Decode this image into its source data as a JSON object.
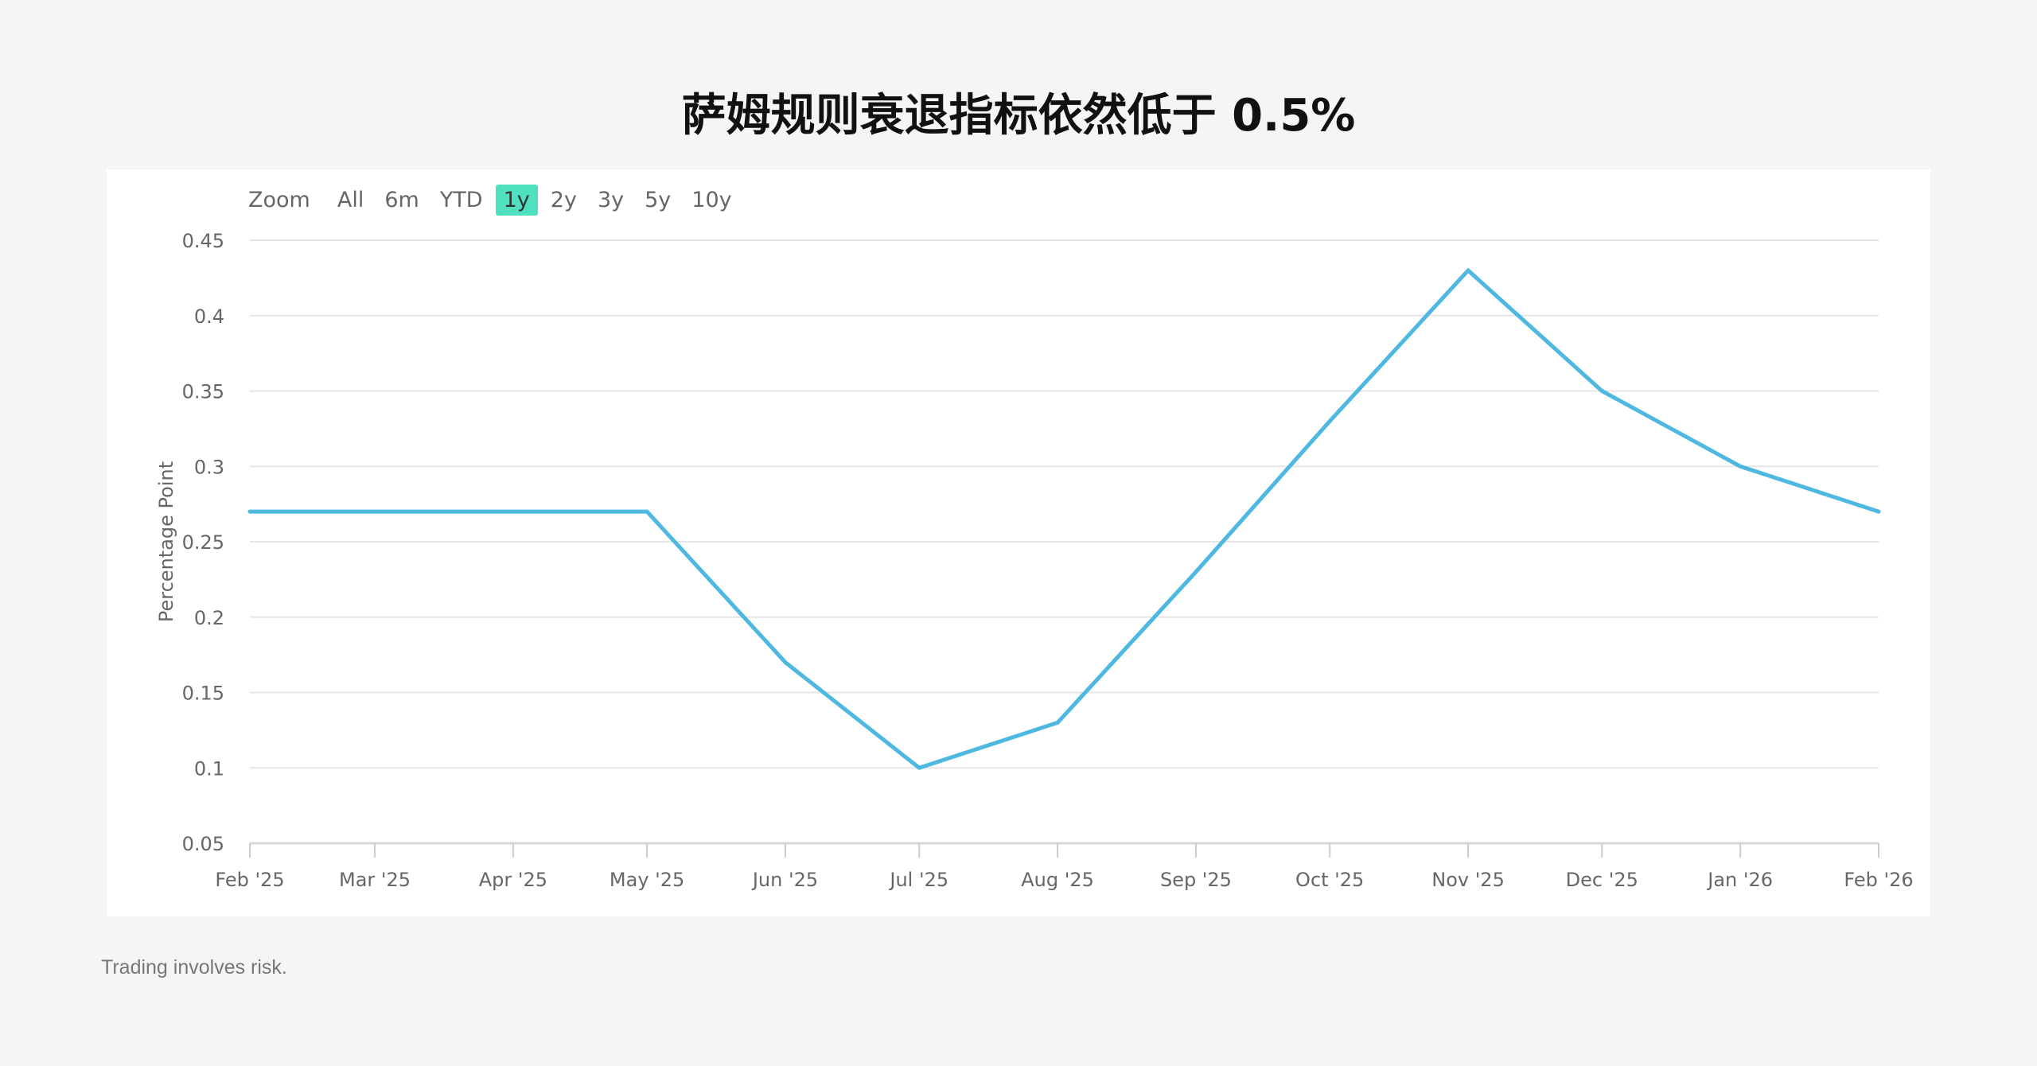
{
  "title": "萨姆规则衰退指标依然低于 0.5%",
  "zoom": {
    "label": "Zoom",
    "buttons": [
      "All",
      "6m",
      "YTD",
      "1y",
      "2y",
      "3y",
      "5y",
      "10y"
    ],
    "active": "1y"
  },
  "footer": "Trading involves risk.",
  "colors": {
    "line": "#4fb8e0",
    "active_button": "#4fe0c0",
    "grid": "#e6e6e6"
  },
  "chart_data": {
    "type": "line",
    "title": "",
    "xlabel": "",
    "ylabel": "Percentage Point",
    "ylim": [
      0.05,
      0.45
    ],
    "yticks": [
      "0.05",
      "0.1",
      "0.15",
      "0.2",
      "0.25",
      "0.3",
      "0.35",
      "0.4",
      "0.45"
    ],
    "grid": true,
    "x": [
      "2025-02-01",
      "2025-03-01",
      "2025-04-01",
      "2025-05-01",
      "2025-06-01",
      "2025-07-01",
      "2025-08-01",
      "2025-09-01",
      "2025-10-01",
      "2025-11-01",
      "2025-12-01",
      "2026-01-01",
      "2026-02-01"
    ],
    "xtick_labels": [
      "Feb '25",
      "Mar '25",
      "Apr '25",
      "May '25",
      "Jun '25",
      "Jul '25",
      "Aug '25",
      "Sep '25",
      "Oct '25",
      "Nov '25",
      "Dec '25",
      "Jan '26",
      "Feb '26"
    ],
    "series": [
      {
        "values": [
          0.27,
          0.27,
          0.27,
          0.27,
          0.17,
          0.1,
          0.13,
          0.23,
          0.33,
          0.43,
          0.35,
          0.3,
          0.27
        ]
      }
    ]
  }
}
